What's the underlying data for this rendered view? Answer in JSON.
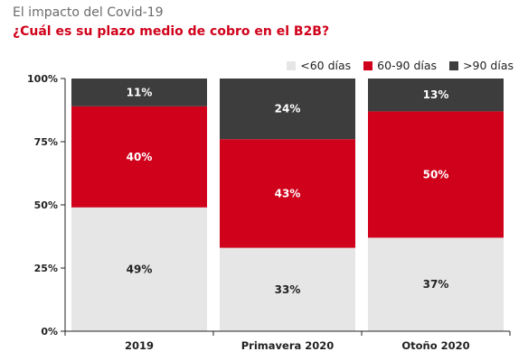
{
  "chart_data": {
    "type": "bar",
    "stacked": true,
    "title": "El impacto del Covid-19",
    "subtitle": "¿Cuál es su plazo medio de cobro en el B2B?",
    "categories": [
      "2019",
      "Primavera 2020",
      "Otoño 2020"
    ],
    "series": [
      {
        "name": "<60 días",
        "values": [
          49,
          33,
          37
        ],
        "labels": [
          "49%",
          "33%",
          "37%"
        ],
        "color": "#e6e6e6",
        "label_color": "#222222"
      },
      {
        "name": "60-90 días",
        "values": [
          40,
          43,
          50
        ],
        "labels": [
          "40%",
          "43%",
          "50%"
        ],
        "color": "#d0021b",
        "label_color": "#ffffff"
      },
      {
        "name": ">90 días",
        "values": [
          11,
          24,
          13
        ],
        "labels": [
          "11%",
          "24%",
          "13%"
        ],
        "color": "#3d3d3d",
        "label_color": "#ffffff"
      }
    ],
    "yticks": [
      0,
      25,
      50,
      75,
      100
    ],
    "ytick_labels": [
      "0%",
      "25%",
      "50%",
      "75%",
      "100%"
    ],
    "ylim": [
      0,
      100
    ],
    "grid": false,
    "legend": "top-right",
    "xlabel": "",
    "ylabel": ""
  }
}
